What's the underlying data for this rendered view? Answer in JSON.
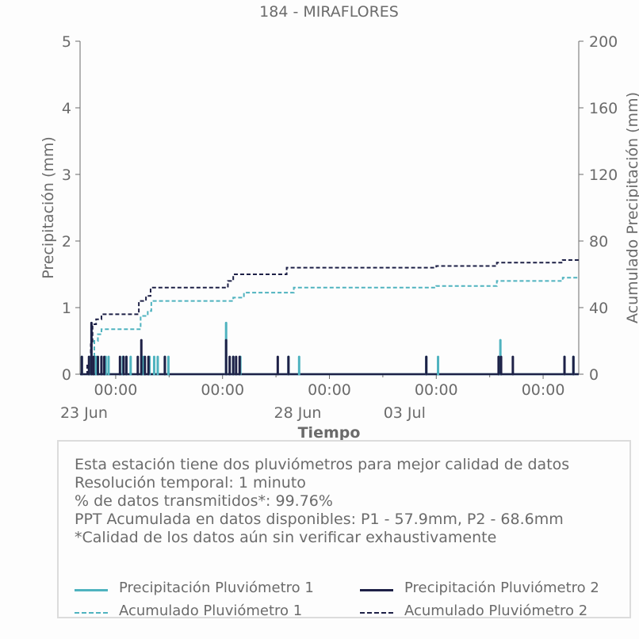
{
  "chart_data": {
    "type": "bar+line",
    "title": "184 - MIRAFLORES",
    "xlabel": "Tiempo",
    "ylabel_left": "Precipitación (mm)",
    "ylabel_right": "Acumulado Precipitación (mm)",
    "ylim_left": [
      0,
      5
    ],
    "ylim_right": [
      0,
      200
    ],
    "yticks_left": [
      "0",
      "1",
      "2",
      "3",
      "4",
      "5"
    ],
    "yticks_right": [
      "0",
      "40",
      "80",
      "120",
      "160",
      "200"
    ],
    "x_range_days": [
      "2024-06-23T00:00",
      "2024-07-07T00:00"
    ],
    "x_tick_labels": [
      {
        "day": 1.0,
        "label": "00:00",
        "sub": "23 Jun"
      },
      {
        "day": 4.0,
        "label": "00:00",
        "sub": ""
      },
      {
        "day": 7.0,
        "label": "00:00",
        "sub": "28 Jun"
      },
      {
        "day": 10.0,
        "label": "00:00",
        "sub": "03 Jul"
      },
      {
        "day": 13.0,
        "label": "00:00",
        "sub": ""
      }
    ],
    "grid": false,
    "colors": {
      "p1": "#4fb3bf",
      "p2": "#1e2147"
    },
    "series": [
      {
        "name": "Precipitación Pluviómetro 1",
        "kind": "bar",
        "color": "#4fb3bf",
        "x": [
          0.05,
          0.3,
          0.45,
          0.6,
          0.72,
          0.8,
          1.2,
          1.3,
          1.42,
          1.78,
          1.95,
          2.08,
          2.18,
          2.38,
          2.48,
          4.1,
          4.3,
          4.5,
          5.85,
          6.15,
          9.72,
          10.05,
          11.8,
          13.6,
          13.85
        ],
        "values": [
          0.26,
          0.26,
          0.26,
          0.26,
          0.26,
          0.26,
          0.26,
          0.26,
          0.26,
          0.26,
          0.26,
          0.26,
          0.26,
          0.26,
          0.26,
          0.77,
          0.26,
          0.26,
          0.26,
          0.26,
          0.26,
          0.26,
          0.51,
          0.26,
          0.26
        ]
      },
      {
        "name": "Precipitación Pluviómetro 2",
        "kind": "bar",
        "color": "#1e2147",
        "x": [
          0.05,
          0.25,
          0.32,
          0.38,
          0.5,
          0.6,
          0.68,
          1.12,
          1.22,
          1.3,
          1.62,
          1.72,
          1.82,
          1.92,
          2.38,
          4.1,
          4.2,
          4.3,
          4.38,
          4.48,
          5.55,
          5.85,
          9.72,
          11.75,
          11.82,
          12.15,
          13.6,
          13.85
        ],
        "values": [
          0.26,
          0.26,
          0.77,
          0.26,
          0.26,
          0.26,
          0.26,
          0.26,
          0.26,
          0.26,
          0.26,
          0.51,
          0.26,
          0.26,
          0.26,
          0.51,
          0.26,
          0.26,
          0.26,
          0.26,
          0.26,
          0.26,
          0.26,
          0.26,
          0.26,
          0.26,
          0.26,
          0.26
        ]
      },
      {
        "name": "Acumulado Pluviómetro 1",
        "kind": "step",
        "color": "#4fb3bf",
        "x": [
          0,
          0.2,
          0.3,
          0.4,
          0.5,
          0.6,
          1.2,
          1.7,
          1.9,
          2.0,
          4.0,
          4.3,
          4.6,
          6.0,
          10.0,
          11.7,
          13.55,
          14
        ],
        "values": [
          0,
          3,
          10,
          20,
          24,
          27,
          27,
          35,
          38,
          44,
          44,
          46,
          49,
          52,
          53,
          56,
          58,
          58
        ]
      },
      {
        "name": "Acumulado Pluviómetro 2",
        "kind": "step",
        "color": "#1e2147",
        "x": [
          0,
          0.2,
          0.3,
          0.35,
          0.45,
          0.6,
          1.2,
          1.65,
          1.85,
          1.98,
          4.0,
          4.15,
          4.3,
          5.8,
          10.0,
          11.7,
          13.55,
          14
        ],
        "values": [
          0,
          6,
          18,
          30,
          33,
          36,
          36,
          44,
          47,
          52,
          52,
          56,
          60,
          64,
          65,
          67,
          68.6,
          68.6
        ]
      }
    ]
  },
  "info": {
    "line1": "Esta estación tiene dos pluviómetros para mejor calidad de datos",
    "line2": "Resolución temporal: 1 minuto",
    "line3": "% de datos transmitidos*: 99.76%",
    "line4": "PPT Acumulada en datos disponibles: P1 - 57.9mm, P2 - 68.6mm",
    "line5": "*Calidad de los datos aún sin verificar exhaustivamente"
  },
  "legend": {
    "p1_bar": "Precipitación Pluviómetro 1",
    "p2_bar": "Precipitación Pluviómetro 2",
    "p1_acc": "Acumulado Pluviómetro 1",
    "p2_acc": "Acumulado Pluviómetro 2"
  }
}
